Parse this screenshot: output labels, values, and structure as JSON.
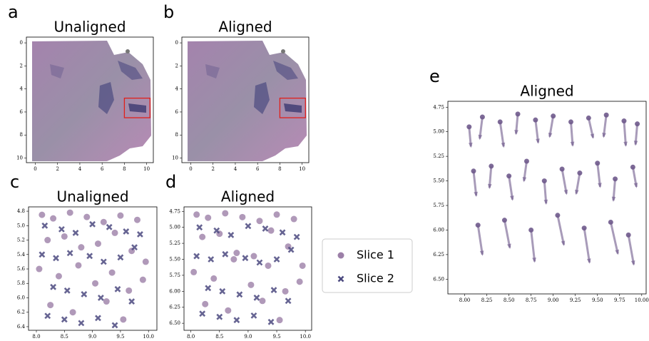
{
  "chart_data": [
    {
      "type": "image",
      "label": "a",
      "title": "Unaligned",
      "xlim": [
        -0.8,
        10.6
      ],
      "ylim": [
        10.4,
        -0.5
      ],
      "xticks": [
        0,
        2,
        4,
        6,
        8,
        10
      ],
      "yticks": [
        0,
        2,
        4,
        6,
        8,
        10
      ],
      "highlight": {
        "x": [
          8,
          10.3
        ],
        "y": [
          4.8,
          6.5
        ],
        "color": "#e0201b"
      }
    },
    {
      "type": "image",
      "label": "b",
      "title": "Aligned",
      "xlim": [
        -0.8,
        10.6
      ],
      "ylim": [
        10.4,
        -0.5
      ],
      "xticks": [
        0,
        2,
        4,
        6,
        8,
        10
      ],
      "yticks": [
        0,
        2,
        4,
        6,
        8,
        10
      ],
      "highlight": {
        "x": [
          8,
          10.3
        ],
        "y": [
          4.8,
          6.5
        ],
        "color": "#e0201b"
      }
    },
    {
      "type": "scatter",
      "label": "c",
      "title": "Unaligned",
      "xlim": [
        7.86,
        10.15
      ],
      "ylim": [
        6.45,
        4.74
      ],
      "xticks": [
        {
          "value": 8,
          "label": "8.0"
        },
        8.5,
        {
          "value": 9,
          "label": "9.0"
        },
        9.5,
        {
          "value": 10,
          "label": "10.0"
        }
      ],
      "yticks": [
        4.8,
        {
          "value": 5,
          "label": "5.0"
        },
        5.2,
        5.4,
        5.6,
        5.8,
        {
          "value": 6,
          "label": "6.0"
        },
        6.2,
        6.4
      ],
      "series": [
        {
          "marker": "circle",
          "color": "#9c7fa8",
          "x": [
            8.1,
            8.3,
            8.6,
            8.9,
            9.2,
            9.5,
            9.8,
            8.2,
            8.5,
            8.8,
            9.1,
            9.4,
            9.7,
            9.95,
            8.05,
            8.4,
            8.75,
            9.05,
            9.35,
            9.65,
            9.9,
            8.25,
            8.65,
            9.25,
            9.55
          ],
          "y": [
            4.85,
            4.9,
            4.82,
            4.88,
            4.95,
            4.86,
            4.92,
            5.2,
            5.15,
            5.3,
            5.25,
            5.1,
            5.35,
            5.5,
            5.6,
            5.7,
            5.55,
            5.8,
            5.65,
            5.9,
            5.75,
            6.1,
            6.2,
            6.05,
            6.3
          ]
        },
        {
          "marker": "x",
          "color": "#4c4a80",
          "x": [
            8.15,
            8.45,
            8.7,
            9.0,
            9.3,
            9.6,
            9.85,
            8.1,
            8.35,
            8.6,
            8.95,
            9.2,
            9.5,
            9.75,
            8.3,
            8.55,
            8.85,
            9.15,
            9.45,
            9.7,
            8.2,
            8.5,
            8.8,
            9.1,
            9.4
          ],
          "y": [
            5.0,
            5.05,
            5.1,
            4.98,
            5.02,
            5.08,
            5.12,
            5.4,
            5.45,
            5.38,
            5.42,
            5.5,
            5.44,
            5.3,
            5.85,
            5.9,
            5.95,
            6.0,
            5.88,
            6.05,
            6.25,
            6.3,
            6.35,
            6.28,
            6.38
          ]
        }
      ]
    },
    {
      "type": "scatter",
      "label": "d",
      "title": "Aligned",
      "xlim": [
        7.88,
        10.11
      ],
      "ylim": [
        6.61,
        4.68
      ],
      "xticks": [
        {
          "value": 8,
          "label": "8.0"
        },
        8.5,
        {
          "value": 9,
          "label": "9.0"
        },
        9.5,
        {
          "value": 10,
          "label": "10.0"
        }
      ],
      "yticks": [
        4.75,
        {
          "value": 5,
          "label": "5.00"
        },
        5.25,
        {
          "value": 5.5,
          "label": "5.50"
        },
        5.75,
        {
          "value": 6,
          "label": "6.00"
        },
        6.25,
        {
          "value": 6.5,
          "label": "6.50"
        }
      ],
      "legend": "outside-right",
      "series": [
        {
          "name": "Slice 1",
          "marker": "circle",
          "color": "#9c7fa8",
          "x": [
            8.1,
            8.3,
            8.6,
            8.9,
            9.2,
            9.5,
            9.8,
            8.2,
            8.5,
            8.8,
            9.1,
            9.4,
            9.7,
            9.95,
            8.05,
            8.4,
            8.75,
            9.05,
            9.35,
            9.65,
            9.9,
            8.25,
            8.65,
            9.25,
            9.55
          ],
          "y": [
            4.8,
            4.85,
            4.78,
            4.84,
            4.9,
            4.8,
            4.87,
            5.15,
            5.1,
            5.4,
            5.45,
            5.05,
            5.3,
            5.6,
            5.7,
            5.8,
            5.5,
            5.9,
            5.6,
            6.0,
            5.85,
            6.2,
            6.3,
            6.15,
            6.45
          ]
        },
        {
          "name": "Slice 2",
          "marker": "x",
          "color": "#4c4a80",
          "x": [
            8.15,
            8.45,
            8.7,
            9.0,
            9.3,
            9.6,
            9.85,
            8.1,
            8.35,
            8.6,
            8.95,
            9.2,
            9.5,
            9.75,
            8.3,
            8.55,
            8.85,
            9.15,
            9.45,
            9.7,
            8.2,
            8.5,
            8.8,
            9.1,
            9.4
          ],
          "y": [
            5.0,
            5.05,
            5.12,
            4.98,
            5.02,
            5.08,
            5.15,
            5.45,
            5.5,
            5.42,
            5.48,
            5.55,
            5.5,
            5.35,
            5.95,
            6.0,
            6.05,
            6.1,
            5.98,
            6.15,
            6.35,
            6.4,
            6.45,
            6.38,
            6.48
          ]
        }
      ]
    },
    {
      "type": "quiver",
      "label": "e",
      "title": "Aligned",
      "xlim": [
        7.81,
        10.05
      ],
      "ylim": [
        6.65,
        4.69
      ],
      "xticks": [
        {
          "value": 8,
          "label": "8.00"
        },
        8.25,
        {
          "value": 8.5,
          "label": "8.50"
        },
        8.75,
        {
          "value": 9,
          "label": "9.00"
        },
        9.25,
        {
          "value": 9.5,
          "label": "9.50"
        },
        9.75,
        {
          "value": 10,
          "label": "10.00"
        }
      ],
      "yticks": [
        4.75,
        {
          "value": 5,
          "label": "5.00"
        },
        5.25,
        {
          "value": 5.5,
          "label": "5.50"
        },
        5.75,
        {
          "value": 6,
          "label": "6.00"
        },
        6.25,
        {
          "value": 6.5,
          "label": "6.50"
        }
      ],
      "color": "#6f5a8c",
      "x": [
        8.05,
        8.2,
        8.4,
        8.6,
        8.8,
        9.0,
        9.2,
        9.4,
        9.6,
        9.8,
        9.95,
        8.1,
        8.3,
        8.5,
        8.7,
        8.9,
        9.1,
        9.3,
        9.5,
        9.7,
        9.9,
        8.15,
        8.45,
        8.75,
        9.05,
        9.35,
        9.65,
        9.85
      ],
      "y": [
        4.95,
        4.85,
        4.9,
        4.82,
        4.88,
        4.84,
        4.9,
        4.86,
        4.83,
        4.89,
        4.92,
        5.4,
        5.35,
        5.45,
        5.3,
        5.5,
        5.38,
        5.42,
        5.32,
        5.48,
        5.36,
        5.95,
        5.9,
        6.0,
        5.85,
        5.98,
        5.92,
        6.05
      ],
      "u": [
        0.02,
        -0.03,
        0.04,
        -0.02,
        0.03,
        -0.04,
        0.02,
        0.05,
        -0.03,
        0.02,
        -0.02,
        0.03,
        -0.02,
        0.04,
        -0.03,
        0.02,
        0.05,
        -0.04,
        0.03,
        -0.02,
        0.04,
        0.05,
        0.06,
        0.04,
        0.07,
        0.06,
        0.08,
        0.06
      ],
      "v": [
        0.2,
        0.22,
        0.25,
        0.2,
        0.23,
        0.21,
        0.24,
        0.2,
        0.22,
        0.25,
        0.21,
        0.25,
        0.22,
        0.24,
        0.2,
        0.23,
        0.25,
        0.21,
        0.24,
        0.22,
        0.2,
        0.3,
        0.28,
        0.32,
        0.3,
        0.35,
        0.32,
        0.3
      ]
    }
  ]
}
